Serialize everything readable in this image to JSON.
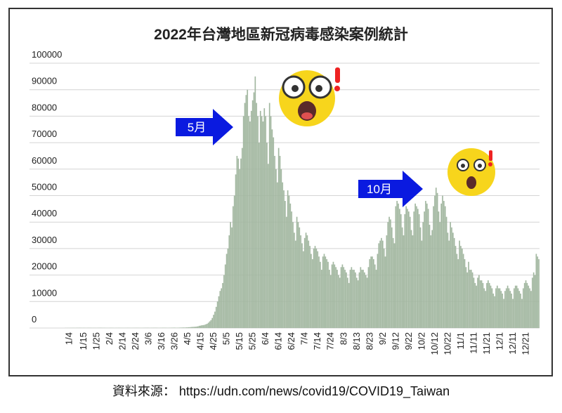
{
  "chart_data": {
    "type": "bar",
    "title": "2022年台灣地區新冠病毒感染案例統計",
    "source": "資料來源： https://udn.com/news/covid19/COVID19_Taiwan",
    "annotations": [
      "5月",
      "10月"
    ],
    "color": "#a2b7a0",
    "grid": true,
    "ylim": [
      0,
      100000
    ],
    "yticks": [
      0,
      10000,
      20000,
      30000,
      40000,
      50000,
      60000,
      70000,
      80000,
      90000,
      100000
    ],
    "categories": [
      null,
      null,
      null,
      "1/4",
      null,
      null,
      null,
      null,
      null,
      null,
      null,
      null,
      null,
      null,
      "1/15",
      null,
      null,
      null,
      null,
      null,
      null,
      null,
      null,
      null,
      "1/25",
      null,
      null,
      null,
      null,
      null,
      null,
      null,
      null,
      null,
      "2/4",
      null,
      null,
      null,
      null,
      null,
      null,
      null,
      null,
      null,
      "2/14",
      null,
      null,
      null,
      null,
      null,
      null,
      null,
      null,
      null,
      "2/24",
      null,
      null,
      null,
      null,
      null,
      null,
      null,
      null,
      null,
      "3/6",
      null,
      null,
      null,
      null,
      null,
      null,
      null,
      null,
      null,
      "3/16",
      null,
      null,
      null,
      null,
      null,
      null,
      null,
      null,
      null,
      "3/26",
      null,
      null,
      null,
      null,
      null,
      null,
      null,
      null,
      null,
      "4/5",
      null,
      null,
      null,
      null,
      null,
      null,
      null,
      null,
      null,
      "4/15",
      null,
      null,
      null,
      null,
      null,
      null,
      null,
      null,
      null,
      "4/25",
      null,
      null,
      null,
      null,
      null,
      null,
      null,
      null,
      null,
      "5/5",
      null,
      null,
      null,
      null,
      null,
      null,
      null,
      null,
      null,
      "5/15",
      null,
      null,
      null,
      null,
      null,
      null,
      null,
      null,
      null,
      "5/25",
      null,
      null,
      null,
      null,
      null,
      null,
      null,
      null,
      null,
      "6/4",
      null,
      null,
      null,
      null,
      null,
      null,
      null,
      null,
      null,
      "6/14",
      null,
      null,
      null,
      null,
      null,
      null,
      null,
      null,
      null,
      "6/24",
      null,
      null,
      null,
      null,
      null,
      null,
      null,
      null,
      null,
      "7/4",
      null,
      null,
      null,
      null,
      null,
      null,
      null,
      null,
      null,
      "7/14",
      null,
      null,
      null,
      null,
      null,
      null,
      null,
      null,
      null,
      "7/24",
      null,
      null,
      null,
      null,
      null,
      null,
      null,
      null,
      null,
      "8/3",
      null,
      null,
      null,
      null,
      null,
      null,
      null,
      null,
      null,
      "8/13",
      null,
      null,
      null,
      null,
      null,
      null,
      null,
      null,
      null,
      "8/23",
      null,
      null,
      null,
      null,
      null,
      null,
      null,
      null,
      null,
      "9/2",
      null,
      null,
      null,
      null,
      null,
      null,
      null,
      null,
      null,
      "9/12",
      null,
      null,
      null,
      null,
      null,
      null,
      null,
      null,
      null,
      "9/22",
      null,
      null,
      null,
      null,
      null,
      null,
      null,
      null,
      null,
      "10/2",
      null,
      null,
      null,
      null,
      null,
      null,
      null,
      null,
      null,
      "10/12",
      null,
      null,
      null,
      null,
      null,
      null,
      null,
      null,
      null,
      "10/22",
      null,
      null,
      null,
      null,
      null,
      null,
      null,
      null,
      null,
      "11/1",
      null,
      null,
      null,
      null,
      null,
      null,
      null,
      null,
      null,
      "11/11",
      null,
      null,
      null,
      null,
      null,
      null,
      null,
      null,
      null,
      "11/21",
      null,
      null,
      null,
      null,
      null,
      null,
      null,
      null,
      null,
      "12/1",
      null,
      null,
      null,
      null,
      null,
      null,
      null,
      null,
      null,
      "12/11",
      null,
      null,
      null,
      null,
      null,
      null,
      null,
      null,
      null,
      "12/21",
      null,
      null,
      null,
      null,
      null,
      null,
      null,
      null,
      null,
      null
    ],
    "values": [
      30,
      25,
      40,
      35,
      45,
      50,
      60,
      55,
      40,
      70,
      65,
      80,
      75,
      60,
      70,
      65,
      50,
      60,
      75,
      80,
      70,
      55,
      65,
      60,
      45,
      70,
      80,
      90,
      75,
      60,
      70,
      55,
      50,
      45,
      60,
      70,
      65,
      50,
      40,
      55,
      60,
      70,
      65,
      55,
      45,
      50,
      55,
      60,
      70,
      65,
      50,
      45,
      60,
      65,
      70,
      75,
      80,
      60,
      55,
      50,
      70,
      75,
      80,
      90,
      85,
      60,
      70,
      80,
      95,
      100,
      90,
      70,
      60,
      80,
      90,
      100,
      110,
      95,
      80,
      70,
      90,
      100,
      120,
      130,
      140,
      110,
      100,
      130,
      150,
      170,
      180,
      200,
      190,
      230,
      260,
      300,
      330,
      380,
      420,
      450,
      490,
      560,
      640,
      830,
      900,
      1050,
      1090,
      1200,
      1400,
      1600,
      2000,
      2500,
      3000,
      3800,
      5000,
      6200,
      8000,
      10000,
      12000,
      14000,
      15000,
      17000,
      20000,
      24000,
      28000,
      30000,
      35000,
      40000,
      38000,
      46000,
      50000,
      58000,
      65000,
      64000,
      60000,
      64000,
      68000,
      80000,
      85000,
      88000,
      90000,
      80000,
      78000,
      82000,
      86000,
      89000,
      95000,
      85000,
      80000,
      70000,
      82000,
      80000,
      78000,
      83000,
      80000,
      70000,
      62000,
      85000,
      80000,
      75000,
      72000,
      65000,
      60000,
      55000,
      68000,
      65000,
      60000,
      55000,
      52000,
      48000,
      42000,
      52000,
      50000,
      47000,
      44000,
      40000,
      36000,
      33000,
      42000,
      40000,
      38000,
      35000,
      32000,
      29000,
      34000,
      36000,
      35000,
      33000,
      31000,
      28000,
      26000,
      30000,
      31000,
      30000,
      29000,
      27000,
      25000,
      22000,
      27000,
      28000,
      27000,
      26000,
      25000,
      22000,
      20000,
      24000,
      25000,
      24000,
      23000,
      22000,
      20000,
      19000,
      23000,
      24000,
      23000,
      22000,
      21000,
      19000,
      17000,
      22000,
      23000,
      22000,
      22000,
      21000,
      19000,
      18000,
      21000,
      23000,
      22000,
      22000,
      21000,
      20000,
      19000,
      23000,
      26000,
      27000,
      27000,
      26000,
      24000,
      22000,
      28000,
      32000,
      33000,
      34000,
      33000,
      30000,
      27000,
      35000,
      40000,
      42000,
      41000,
      38000,
      34000,
      32000,
      46000,
      48000,
      47000,
      45000,
      43000,
      38000,
      35000,
      43000,
      46000,
      45000,
      44000,
      42000,
      37000,
      35000,
      44000,
      47000,
      46000,
      45000,
      43000,
      38000,
      33000,
      40000,
      44000,
      48000,
      47000,
      45000,
      39000,
      35000,
      37000,
      46000,
      50000,
      53000,
      51000,
      44000,
      40000,
      47000,
      50000,
      48000,
      46000,
      42000,
      36000,
      33000,
      40000,
      38000,
      36000,
      34000,
      31000,
      28000,
      26000,
      33000,
      31000,
      30000,
      28000,
      26000,
      23000,
      21000,
      25000,
      22000,
      22000,
      21000,
      19000,
      17000,
      16000,
      19000,
      20000,
      18000,
      18000,
      17000,
      15000,
      14000,
      17000,
      18000,
      17000,
      16000,
      15000,
      13000,
      12000,
      15000,
      16000,
      15000,
      15000,
      14000,
      13000,
      11000,
      14000,
      15000,
      16000,
      15000,
      14000,
      13000,
      11000,
      15000,
      16000,
      16000,
      15000,
      14000,
      13000,
      11000,
      15000,
      17000,
      18000,
      17000,
      16000,
      15000,
      14000,
      19000,
      21000,
      20000,
      28000,
      27000,
      26000
    ]
  }
}
